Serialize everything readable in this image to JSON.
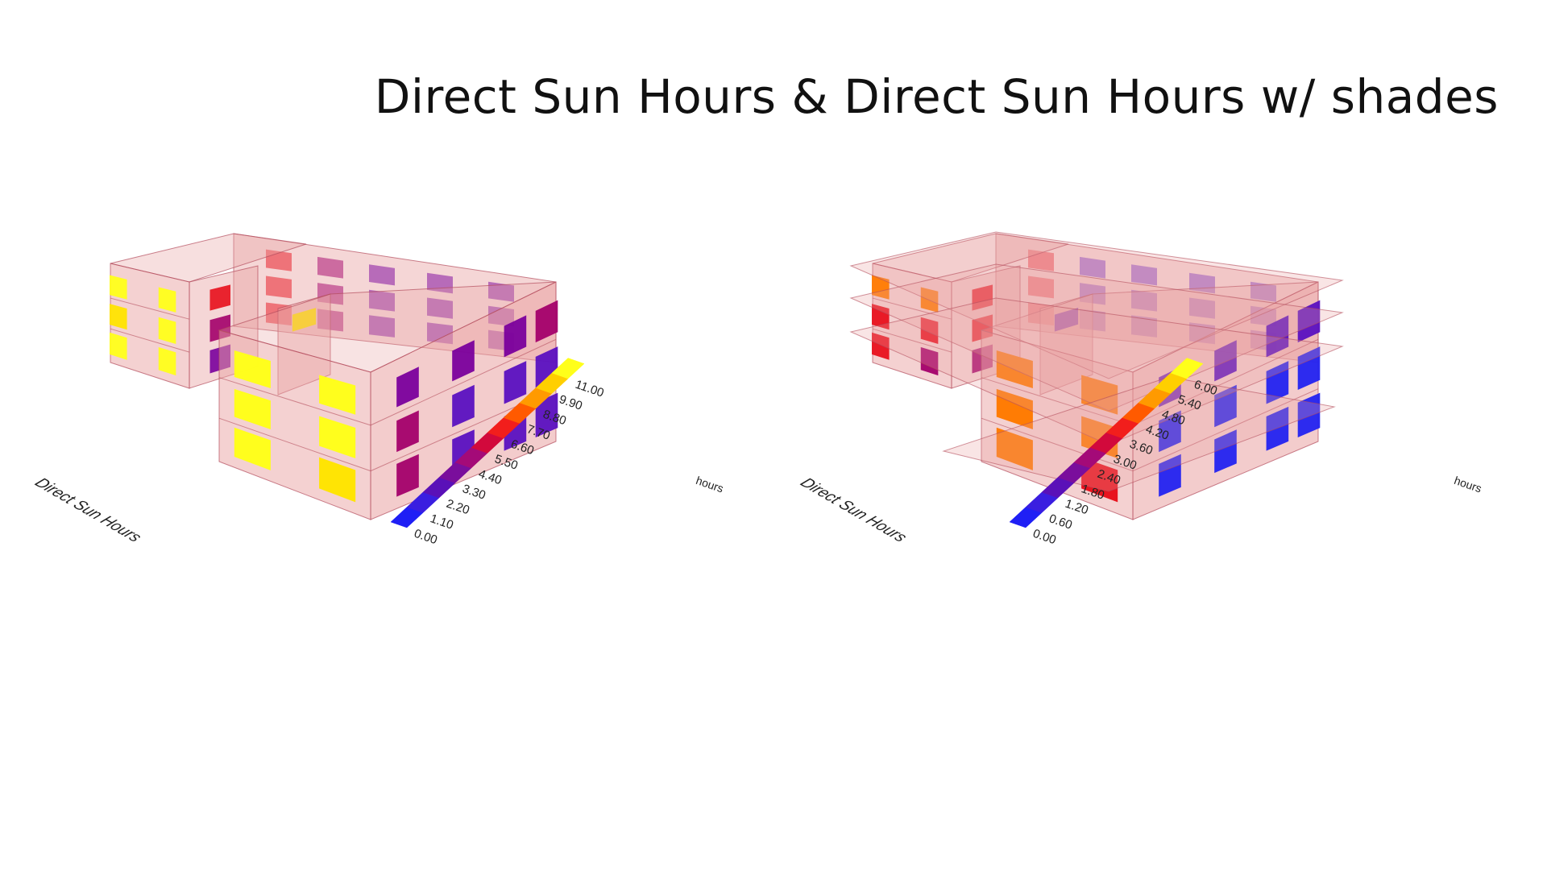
{
  "slide": {
    "title": "Direct Sun Hours & Direct Sun Hours w/ shades"
  },
  "colors": {
    "massing_fill": "#e9a3a3",
    "massing_edge": "#b44c5c",
    "background": "#ffffff"
  },
  "diagrams": [
    {
      "id": "without-shades",
      "side_label": "Direct Sun Hours",
      "unit": "hours",
      "legend_ticks": [
        "0.00",
        "1.10",
        "2.20",
        "3.30",
        "4.40",
        "5.50",
        "6.60",
        "7.70",
        "8.80",
        "9.90",
        "11.00"
      ],
      "legend_colors": [
        "#1f1ff5",
        "#3a1ee0",
        "#5a10b8",
        "#7a0e9c",
        "#a40a78",
        "#d2093c",
        "#f21e1c",
        "#ff5a00",
        "#ff9a00",
        "#ffcf00",
        "#ffff1a"
      ],
      "shades": false
    },
    {
      "id": "with-shades",
      "side_label": "Direct Sun Hours",
      "unit": "hours",
      "legend_ticks": [
        "0.00",
        "0.60",
        "1.20",
        "1.80",
        "2.40",
        "3.00",
        "3.60",
        "4.20",
        "4.80",
        "5.40",
        "6.00"
      ],
      "legend_colors": [
        "#1f1ff5",
        "#3a1ee0",
        "#5a10b8",
        "#7a0e9c",
        "#a40a78",
        "#d2093c",
        "#f21e1c",
        "#ff5a00",
        "#ff9a00",
        "#ffcf00",
        "#ffff1a"
      ],
      "shades": true
    }
  ]
}
